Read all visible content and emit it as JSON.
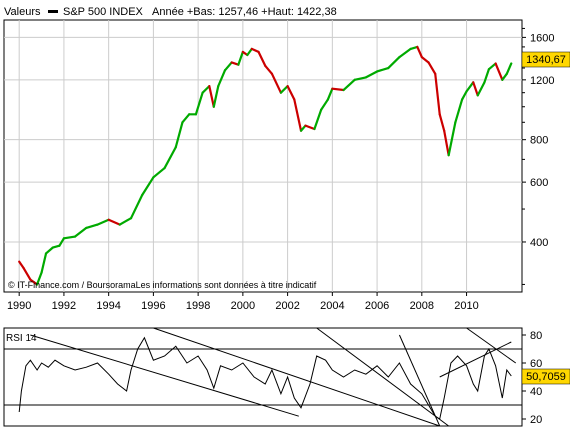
{
  "header": {
    "valeurs_label": "Valeurs",
    "index_name": "S&P 500 INDEX",
    "range_text": "Année +Bas: 1257,46 +Haut: 1422,38"
  },
  "source_text": "© IT-Finance.com / BoursoramaLes informations sont données à titre indicatif",
  "colors": {
    "up": "#00aa00",
    "down": "#cc0000",
    "badge": "#ffd700",
    "grid": "#cccccc",
    "line": "#000000"
  },
  "chart_data": [
    {
      "type": "line",
      "title": "S&P 500 INDEX",
      "scale": "log",
      "x_ticks": [
        "1990",
        "1992",
        "1994",
        "1996",
        "1998",
        "2000",
        "2002",
        "2004",
        "2006",
        "2008",
        "2010"
      ],
      "xlim": [
        1989.5,
        2012.3
      ],
      "y_ticks": [
        400,
        600,
        800,
        1200,
        1600
      ],
      "ylim": [
        285,
        1800
      ],
      "last_value_label": "1340,67",
      "last_value": 1340.67,
      "grid": true,
      "series": [
        {
          "x": [
            1990.0,
            1990.2,
            1990.5,
            1990.8,
            1991.0,
            1991.2,
            1991.5,
            1991.8,
            1992.0,
            1992.5,
            1993.0,
            1993.5,
            1994.0,
            1994.5,
            1995.0,
            1995.5,
            1996.0,
            1996.5,
            1997.0,
            1997.3,
            1997.6,
            1997.9,
            1998.2,
            1998.5,
            1998.7,
            1998.9,
            1999.2,
            1999.5,
            1999.8,
            2000.0,
            2000.2,
            2000.4,
            2000.7,
            2001.0,
            2001.3,
            2001.7,
            2002.0,
            2002.3,
            2002.6,
            2002.8,
            2003.2,
            2003.5,
            2003.8,
            2004.0,
            2004.5,
            2005.0,
            2005.5,
            2006.0,
            2006.5,
            2007.0,
            2007.5,
            2007.8,
            2008.0,
            2008.3,
            2008.6,
            2008.8,
            2009.0,
            2009.2,
            2009.5,
            2009.8,
            2010.0,
            2010.3,
            2010.5,
            2010.8,
            2011.0,
            2011.3,
            2011.6,
            2011.8,
            2012.0
          ],
          "y": [
            350,
            335,
            310,
            300,
            325,
            370,
            385,
            390,
            410,
            415,
            440,
            450,
            465,
            450,
            470,
            550,
            620,
            660,
            760,
            900,
            950,
            950,
            1100,
            1150,
            1000,
            1150,
            1280,
            1350,
            1330,
            1450,
            1420,
            1480,
            1450,
            1320,
            1250,
            1100,
            1150,
            1050,
            850,
            880,
            860,
            980,
            1050,
            1130,
            1120,
            1200,
            1220,
            1270,
            1300,
            1400,
            1480,
            1500,
            1400,
            1350,
            1250,
            950,
            850,
            720,
            900,
            1050,
            1110,
            1180,
            1080,
            1180,
            1290,
            1340,
            1200,
            1250,
            1340.67
          ]
        }
      ]
    },
    {
      "type": "line",
      "title": "RSI 14",
      "y_ticks": [
        20,
        40,
        60,
        80
      ],
      "ylim": [
        15,
        85
      ],
      "reference_lines": [
        30,
        70
      ],
      "last_value_label": "50,7059",
      "last_value": 50.7059,
      "series": [
        {
          "name": "RSI 14",
          "x": [
            1990.0,
            1990.1,
            1990.3,
            1990.5,
            1990.8,
            1991.0,
            1991.3,
            1991.6,
            1992.0,
            1992.5,
            1993.0,
            1993.5,
            1994.0,
            1994.4,
            1994.8,
            1995.0,
            1995.3,
            1995.6,
            1996.0,
            1996.5,
            1997.0,
            1997.5,
            1998.0,
            1998.4,
            1998.7,
            1999.0,
            1999.5,
            2000.0,
            2000.5,
            2001.0,
            2001.3,
            2001.7,
            2002.0,
            2002.3,
            2002.6,
            2003.0,
            2003.3,
            2003.7,
            2004.0,
            2004.5,
            2005.0,
            2005.5,
            2006.0,
            2006.5,
            2007.0,
            2007.5,
            2008.0,
            2008.3,
            2008.6,
            2008.8,
            2009.0,
            2009.3,
            2009.6,
            2010.0,
            2010.3,
            2010.5,
            2010.8,
            2011.0,
            2011.3,
            2011.6,
            2011.8,
            2012.0
          ],
          "y": [
            25,
            40,
            58,
            62,
            55,
            60,
            57,
            62,
            58,
            55,
            57,
            60,
            52,
            45,
            40,
            55,
            70,
            78,
            62,
            65,
            72,
            60,
            65,
            55,
            42,
            58,
            55,
            60,
            50,
            45,
            55,
            38,
            50,
            35,
            28,
            45,
            65,
            62,
            55,
            50,
            55,
            52,
            58,
            50,
            60,
            45,
            38,
            30,
            22,
            20,
            35,
            60,
            65,
            58,
            45,
            40,
            65,
            70,
            58,
            35,
            55,
            50.7
          ]
        }
      ]
    }
  ]
}
